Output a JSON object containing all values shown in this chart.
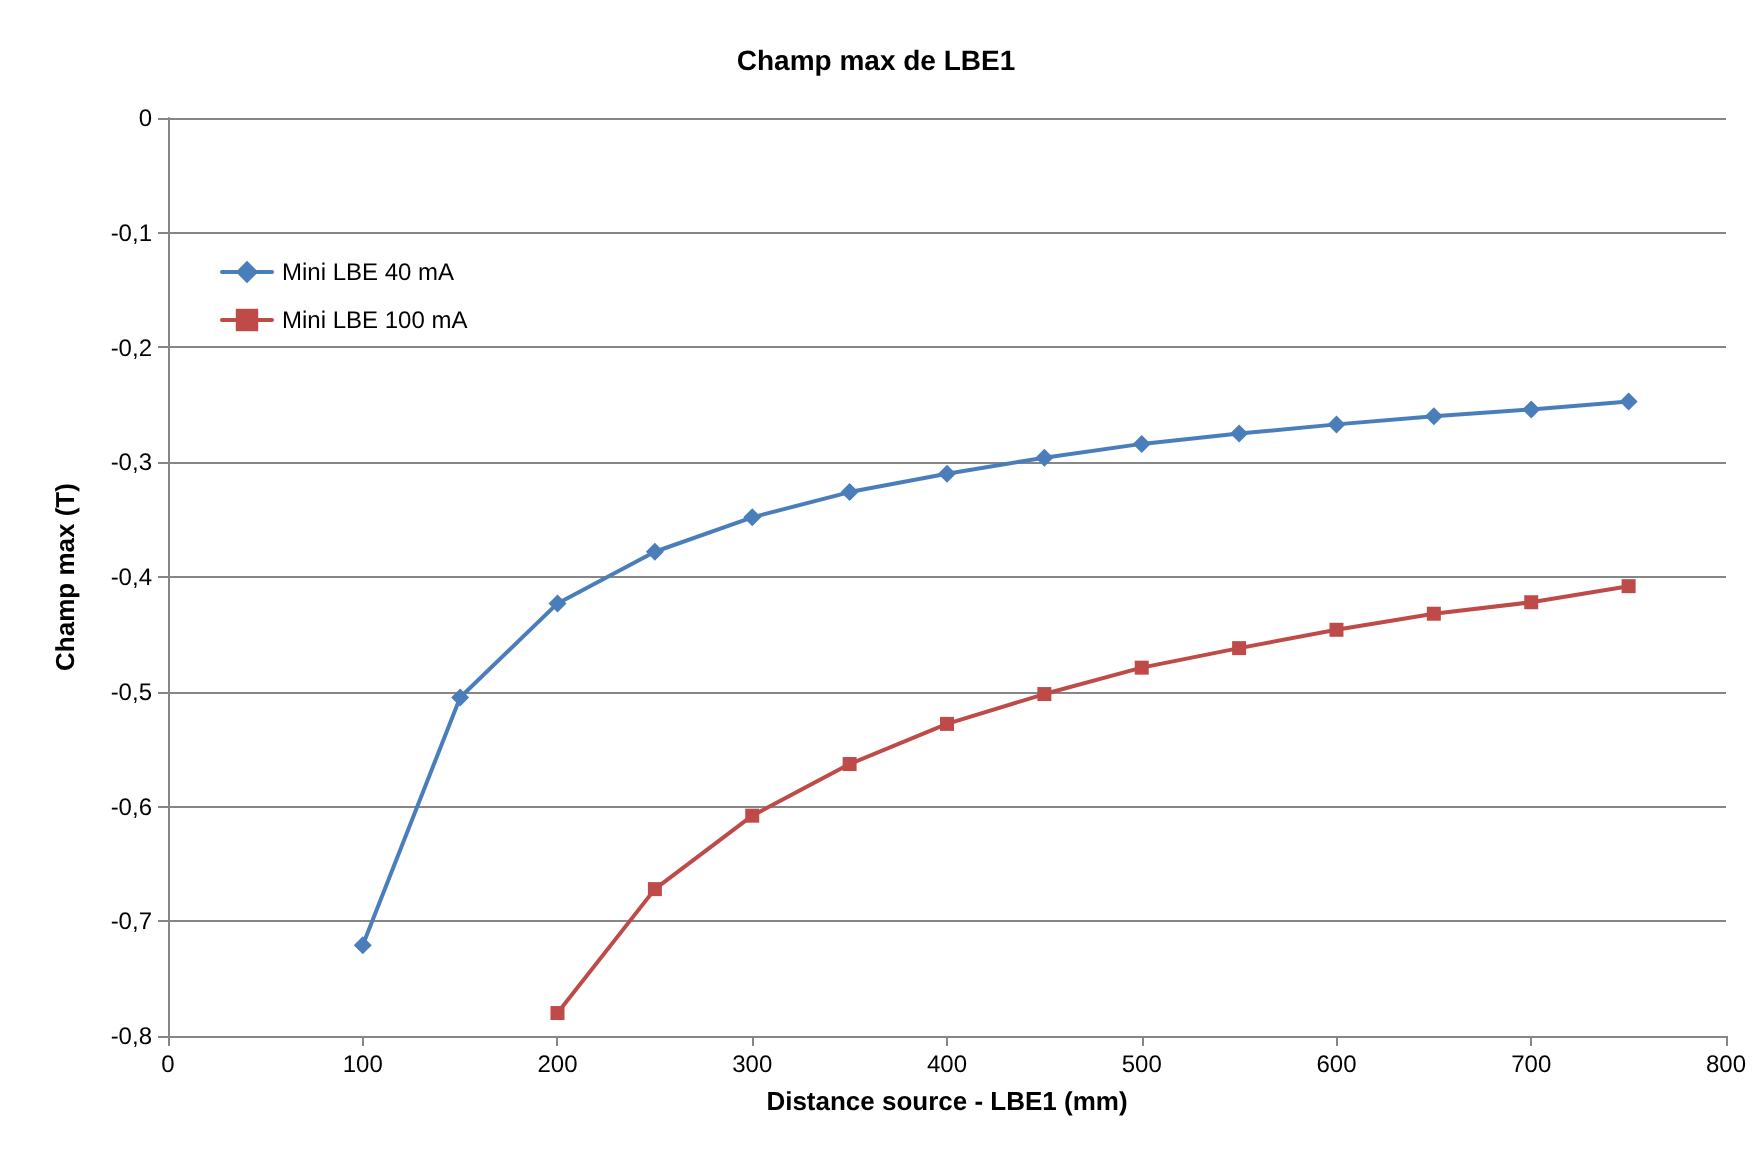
{
  "chart_data": {
    "type": "line",
    "title": "Champ max de LBE1",
    "xlabel": "Distance source - LBE1 (mm)",
    "ylabel": "Champ max (T)",
    "series": [
      {
        "name": "Mini LBE 40 mA",
        "color": "#4a7ebb",
        "marker": "diamond",
        "x": [
          100,
          150,
          200,
          250,
          300,
          350,
          400,
          450,
          500,
          550,
          600,
          650,
          700,
          750
        ],
        "values": [
          -0.721,
          -0.505,
          -0.423,
          -0.378,
          -0.348,
          -0.326,
          -0.31,
          -0.296,
          -0.284,
          -0.275,
          -0.267,
          -0.26,
          -0.254,
          -0.247
        ]
      },
      {
        "name": "Mini LBE 100 mA",
        "color": "#be4b48",
        "marker": "square",
        "x": [
          200,
          250,
          300,
          350,
          400,
          450,
          500,
          550,
          600,
          650,
          700,
          750
        ],
        "values": [
          -0.78,
          -0.672,
          -0.608,
          -0.563,
          -0.528,
          -0.502,
          -0.479,
          -0.462,
          -0.446,
          -0.432,
          -0.422,
          -0.408
        ]
      }
    ],
    "xlim": [
      0,
      800
    ],
    "xticks": [
      0,
      100,
      200,
      300,
      400,
      500,
      600,
      700,
      800
    ],
    "ylim": [
      -0.8,
      0
    ],
    "yticks": [
      {
        "value": -0.8,
        "label": "-0,8"
      },
      {
        "value": -0.7,
        "label": "-0,7"
      },
      {
        "value": -0.6,
        "label": "-0,6"
      },
      {
        "value": -0.5,
        "label": "-0,5"
      },
      {
        "value": -0.4,
        "label": "-0,4"
      },
      {
        "value": -0.3,
        "label": "-0,3"
      },
      {
        "value": -0.2,
        "label": "-0,2"
      },
      {
        "value": -0.1,
        "label": "-0,1"
      },
      {
        "value": 0,
        "label": "0"
      }
    ],
    "grid": "y",
    "legend": "top left",
    "line_style": "solid"
  }
}
